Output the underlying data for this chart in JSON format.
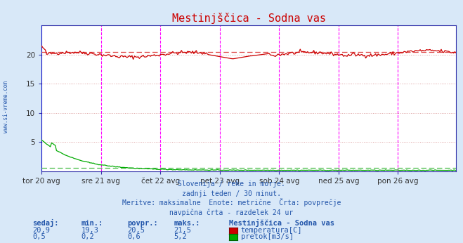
{
  "title": "Mestinjščica - Sodna vas",
  "bg_color": "#d8e8f8",
  "plot_bg_color": "#ffffff",
  "vline_color": "#ff00ff",
  "temp_color": "#cc0000",
  "temp_avg_color": "#dd4444",
  "flow_color": "#00aa00",
  "flow_avg_color": "#44bb44",
  "day_labels": [
    "tor 20 avg",
    "sre 21 avg",
    "čet 22 avg",
    "pet 23 avg",
    "sob 24 avg",
    "ned 25 avg",
    "pon 26 avg"
  ],
  "day_positions": [
    0,
    48,
    96,
    144,
    192,
    240,
    288
  ],
  "n_points": 336,
  "y_ticks": [
    5,
    10,
    15,
    20
  ],
  "subtitle_lines": [
    "Slovenija / reke in morje.",
    "zadnji teden / 30 minut.",
    "Meritve: maksimalne  Enote: metrične  Črta: povprečje",
    "navpična črta - razdelek 24 ur"
  ],
  "subtitle_color": "#2255aa",
  "table_header": [
    "sedaj:",
    "min.:",
    "povpr.:",
    "maks.:"
  ],
  "table_values_temp": [
    "20,9",
    "19,3",
    "20,5",
    "21,5"
  ],
  "table_values_flow": [
    "0,5",
    "0,2",
    "0,6",
    "5,2"
  ],
  "legend_title": "Mestinjščica - Sodna vas",
  "legend_items": [
    "temperatura[C]",
    "pretok[m3/s]"
  ],
  "legend_colors": [
    "#cc0000",
    "#00aa00"
  ],
  "sidebar_text": "www.si-vreme.com",
  "sidebar_color": "#2255aa",
  "temp_avg_val": 20.5,
  "flow_avg_val": 0.6
}
